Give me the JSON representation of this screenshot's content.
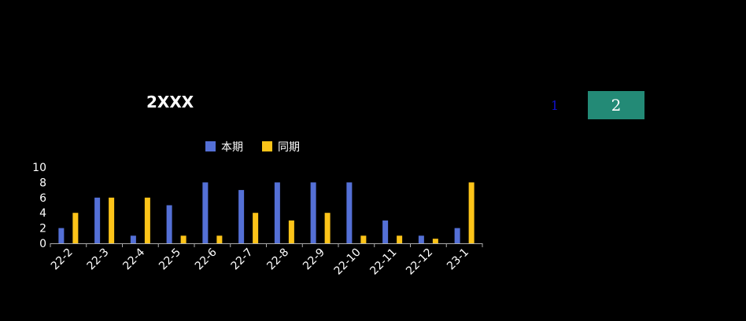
{
  "title": "2XXX",
  "pagination": {
    "page1": "1",
    "page2": "2"
  },
  "colors": {
    "current": "#5470d6",
    "previous": "#fcc419",
    "active_page_bg": "#238a76",
    "inactive_page_text": "#1010cc"
  },
  "chart_data": {
    "type": "bar",
    "categories": [
      "22-2",
      "22-3",
      "22-4",
      "22-5",
      "22-6",
      "22-7",
      "22-8",
      "22-9",
      "22-10",
      "22-11",
      "22-12",
      "23-1"
    ],
    "series": [
      {
        "name": "本期",
        "color": "#5470d6",
        "values": [
          2,
          6,
          1,
          5,
          8,
          7,
          8,
          8,
          8,
          3,
          1,
          2
        ]
      },
      {
        "name": "同期",
        "color": "#fcc419",
        "values": [
          4,
          6,
          6,
          1,
          1,
          4,
          3,
          4,
          1,
          1,
          0.6,
          8
        ]
      }
    ],
    "ylim": [
      0,
      10
    ],
    "yticks": [
      0,
      2,
      4,
      6,
      8,
      10
    ],
    "legend_position": "top-center",
    "grid": false
  }
}
